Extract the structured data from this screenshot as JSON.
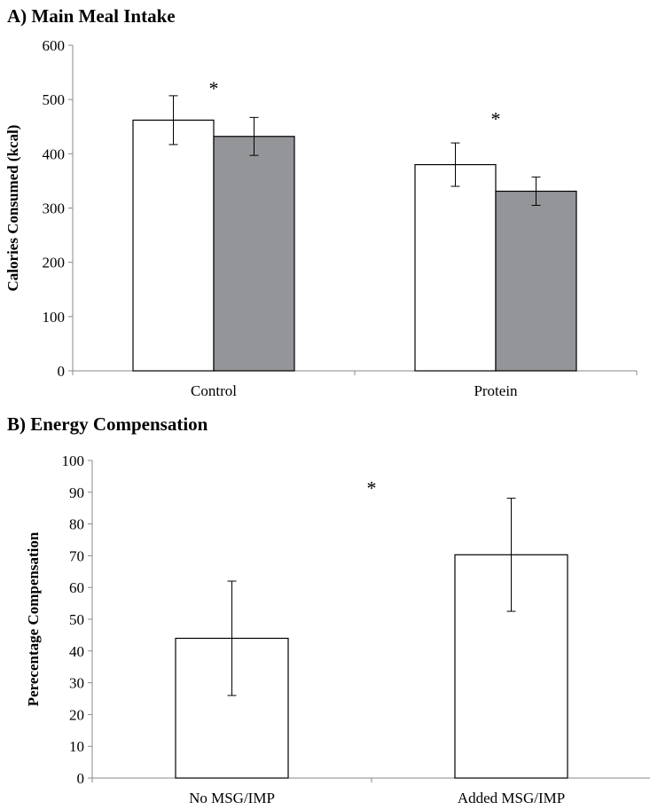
{
  "chart_data": [
    {
      "panel": "A",
      "type": "bar",
      "title": "A) Main Meal Intake",
      "xlabel": "",
      "ylabel": "Calories Consumed (kcal)",
      "ylim": [
        0,
        600
      ],
      "yticks": [
        0,
        100,
        200,
        300,
        400,
        500,
        600
      ],
      "categories": [
        "Control",
        "Protein"
      ],
      "series": [
        {
          "color": "#ffffff",
          "values": [
            462,
            380
          ],
          "errors": [
            45,
            40
          ]
        },
        {
          "color": "#939598",
          "values": [
            432,
            331
          ],
          "errors": [
            35,
            26
          ]
        }
      ],
      "annotations": [
        {
          "text": "*",
          "category": "Control",
          "y": 525
        },
        {
          "text": "*",
          "category": "Protein",
          "y": 468
        }
      ],
      "grid": false,
      "legend": "none"
    },
    {
      "panel": "B",
      "type": "bar",
      "title": "B) Energy Compensation",
      "xlabel": "",
      "ylabel": "Perecentage Compensation",
      "ylim": [
        0,
        100
      ],
      "yticks": [
        0,
        10,
        20,
        30,
        40,
        50,
        60,
        70,
        80,
        90,
        100
      ],
      "categories": [
        "No MSG/IMP",
        "Added MSG/IMP"
      ],
      "series": [
        {
          "color": "#ffffff",
          "values": [
            44,
            70.3
          ],
          "errors": [
            18,
            17.8
          ]
        }
      ],
      "annotations": [
        {
          "text": "*",
          "between": true,
          "y": 92
        }
      ],
      "grid": false,
      "legend": "none"
    }
  ]
}
